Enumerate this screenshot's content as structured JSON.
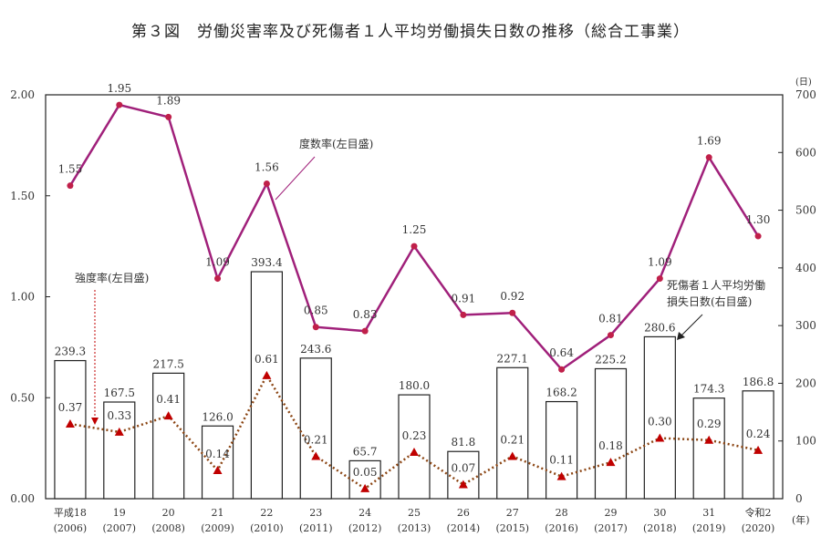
{
  "chart_data": {
    "type": "bar+line",
    "title": "第３図　労働災害率及び死傷者１人平均労働損失日数の推移（総合工事業）",
    "categories": [
      "平成18",
      "19",
      "20",
      "21",
      "22",
      "23",
      "24",
      "25",
      "26",
      "27",
      "28",
      "29",
      "30",
      "31",
      "令和2"
    ],
    "categories_sub": [
      "(2006)",
      "(2007)",
      "(2008)",
      "(2009)",
      "(2010)",
      "(2011)",
      "(2012)",
      "(2013)",
      "(2014)",
      "(2015)",
      "(2016)",
      "(2017)",
      "(2018)",
      "(2019)",
      "(2020)"
    ],
    "x_unit": "(年)",
    "y_left": {
      "range": [
        0,
        2.0
      ],
      "ticks": [
        "0.00",
        "0.50",
        "1.00",
        "1.50",
        "2.00"
      ]
    },
    "y_right": {
      "range": [
        0,
        700
      ],
      "ticks": [
        "0",
        "100",
        "200",
        "300",
        "400",
        "500",
        "600",
        "700"
      ],
      "unit": "(日)"
    },
    "series": [
      {
        "name": "度数率(左目盛)",
        "type": "line",
        "axis": "left",
        "color": "#a0207a",
        "values": [
          1.55,
          1.95,
          1.89,
          1.09,
          1.56,
          0.85,
          0.83,
          1.25,
          0.91,
          0.92,
          0.64,
          0.81,
          1.09,
          1.69,
          1.3
        ],
        "labels": [
          "1.55",
          "1.95",
          "1.89",
          "1.09",
          "1.56",
          "0.85",
          "0.83",
          "1.25",
          "0.91",
          "0.92",
          "0.64",
          "0.81",
          "1.09",
          "1.69",
          "1.30"
        ]
      },
      {
        "name": "強度率(左目盛)",
        "type": "dotted-line",
        "axis": "left",
        "color": "#8b4513",
        "marker_color": "#c00000",
        "values": [
          0.37,
          0.33,
          0.41,
          0.14,
          0.61,
          0.21,
          0.05,
          0.23,
          0.07,
          0.21,
          0.11,
          0.18,
          0.3,
          0.29,
          0.24
        ],
        "labels": [
          "0.37",
          "0.33",
          "0.41",
          "0.14",
          "0.61",
          "0.21",
          "0.05",
          "0.23",
          "0.07",
          "0.21",
          "0.11",
          "0.18",
          "0.30",
          "0.29",
          "0.24"
        ]
      },
      {
        "name": "死傷者１人平均労働損失日数(右目盛)",
        "type": "bar",
        "axis": "right",
        "values": [
          239.3,
          167.5,
          217.5,
          126.0,
          393.4,
          243.6,
          65.7,
          180.0,
          81.8,
          227.1,
          168.2,
          225.2,
          280.6,
          174.3,
          186.8
        ],
        "labels": [
          "239.3",
          "167.5",
          "217.5",
          "126.0",
          "393.4",
          "243.6",
          "65.7",
          "180.0",
          "81.8",
          "227.1",
          "168.2",
          "225.2",
          "280.6",
          "174.3",
          "186.8"
        ]
      }
    ],
    "annotations": {
      "freq": "度数率(左目盛)",
      "sev": "強度率(左目盛)",
      "days_line1": "死傷者１人平均労働",
      "days_line2": "損失日数(右目盛)"
    }
  }
}
